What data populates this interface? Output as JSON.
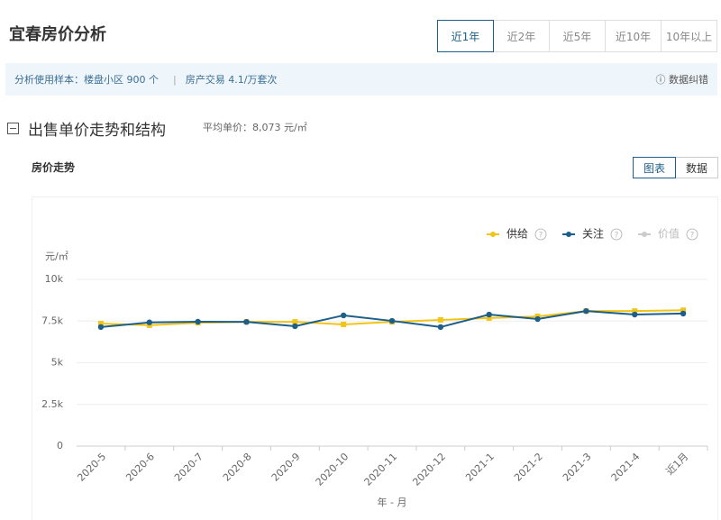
{
  "header": {
    "title": "宜春房价分析",
    "tabs": [
      "近1年",
      "近2年",
      "近5年",
      "近10年",
      "10年以上"
    ],
    "active_tab": 0
  },
  "info": {
    "sample_label": "分析使用样本：",
    "sample_text": "楼盘小区 900 个",
    "trade_text": "房产交易 4.1/万套次",
    "report": "数据纠错"
  },
  "section": {
    "title": "出售单价走势和结构",
    "avg_label": "平均单价：",
    "avg_value": "8,073 元/㎡",
    "subtitle": "房价走势",
    "buttons": [
      "图表",
      "数据"
    ],
    "active_button": 0
  },
  "chart_data": {
    "type": "line",
    "y_label": "元/㎡",
    "x_label": "年 - 月",
    "categories": [
      "2020-5",
      "2020-6",
      "2020-7",
      "2020-8",
      "2020-9",
      "2020-10",
      "2020-11",
      "2020-12",
      "2021-1",
      "2021-2",
      "2021-3",
      "2021-4",
      "近1月"
    ],
    "series": [
      {
        "name": "供给",
        "color": "#f0c419",
        "marker": "square",
        "values": [
          7350,
          7250,
          7400,
          7450,
          7450,
          7300,
          7450,
          7570,
          7680,
          7780,
          8100,
          8100,
          8150
        ]
      },
      {
        "name": "关注",
        "color": "#1d5f8a",
        "marker": "circle",
        "values": [
          7140,
          7420,
          7460,
          7450,
          7190,
          7840,
          7510,
          7140,
          7890,
          7620,
          8100,
          7890,
          7950
        ]
      },
      {
        "name": "价值",
        "color": "#cccccc",
        "marker": "circle",
        "values": [
          null,
          null,
          null,
          null,
          null,
          null,
          null,
          null,
          null,
          null,
          null,
          null,
          null
        ]
      }
    ],
    "ylim": [
      0,
      10000
    ],
    "yticks": [
      0,
      {
        "value": 2500,
        "label": "2.5k"
      },
      {
        "value": 5000,
        "label": "5k"
      },
      {
        "value": 7500,
        "label": "7.5k"
      },
      {
        "value": 10000,
        "label": "10k"
      }
    ],
    "grid": true,
    "legend_position": "top-right"
  }
}
